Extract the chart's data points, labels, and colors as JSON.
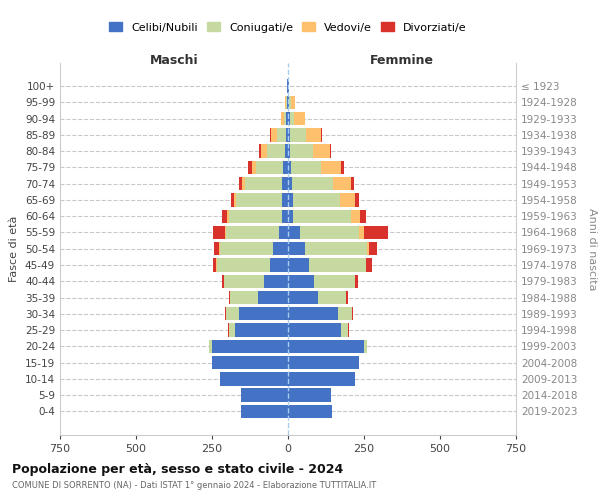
{
  "age_groups": [
    "0-4",
    "5-9",
    "10-14",
    "15-19",
    "20-24",
    "25-29",
    "30-34",
    "35-39",
    "40-44",
    "45-49",
    "50-54",
    "55-59",
    "60-64",
    "65-69",
    "70-74",
    "75-79",
    "80-84",
    "85-89",
    "90-94",
    "95-99",
    "100+"
  ],
  "birth_years": [
    "2019-2023",
    "2014-2018",
    "2009-2013",
    "2004-2008",
    "1999-2003",
    "1994-1998",
    "1989-1993",
    "1984-1988",
    "1979-1983",
    "1974-1978",
    "1969-1973",
    "1964-1968",
    "1959-1963",
    "1954-1958",
    "1949-1953",
    "1944-1948",
    "1939-1943",
    "1934-1938",
    "1929-1933",
    "1924-1928",
    "≤ 1923"
  ],
  "colors": {
    "celibi": "#4472c4",
    "coniugati": "#c5d9a0",
    "vedovi": "#ffc06e",
    "divorziati": "#d9312b"
  },
  "males": {
    "celibi": [
      155,
      155,
      225,
      250,
      250,
      175,
      160,
      100,
      80,
      60,
      50,
      30,
      20,
      20,
      20,
      15,
      10,
      5,
      5,
      4,
      2
    ],
    "coniugati": [
      0,
      0,
      0,
      0,
      10,
      20,
      45,
      90,
      130,
      175,
      175,
      175,
      175,
      150,
      120,
      90,
      60,
      30,
      8,
      2,
      0
    ],
    "vedovi": [
      0,
      0,
      0,
      0,
      0,
      0,
      0,
      0,
      0,
      1,
      2,
      3,
      5,
      8,
      10,
      15,
      20,
      20,
      10,
      5,
      0
    ],
    "divorziati": [
      0,
      0,
      0,
      0,
      0,
      2,
      2,
      5,
      8,
      10,
      18,
      40,
      18,
      10,
      10,
      10,
      5,
      5,
      0,
      0,
      0
    ]
  },
  "females": {
    "celibi": [
      145,
      140,
      220,
      235,
      250,
      175,
      165,
      100,
      85,
      70,
      55,
      40,
      18,
      15,
      12,
      10,
      8,
      5,
      5,
      4,
      2
    ],
    "coniugati": [
      0,
      0,
      0,
      0,
      10,
      22,
      45,
      90,
      135,
      185,
      205,
      195,
      190,
      155,
      135,
      100,
      75,
      55,
      15,
      5,
      0
    ],
    "vedovi": [
      0,
      0,
      0,
      0,
      0,
      0,
      0,
      0,
      1,
      3,
      8,
      15,
      30,
      50,
      60,
      65,
      55,
      50,
      35,
      15,
      2
    ],
    "divorziati": [
      0,
      0,
      0,
      0,
      0,
      3,
      5,
      8,
      10,
      18,
      25,
      80,
      18,
      15,
      10,
      10,
      5,
      3,
      2,
      0,
      0
    ]
  },
  "xlim": 750,
  "title": "Popolazione per età, sesso e stato civile - 2024",
  "subtitle": "COMUNE DI SORRENTO (NA) - Dati ISTAT 1° gennaio 2024 - Elaborazione TUTTITALIA.IT",
  "xlabel_left": "Maschi",
  "xlabel_right": "Femmine",
  "ylabel_left": "Fasce di età",
  "ylabel_right": "Anni di nascita",
  "legend_labels": [
    "Celibi/Nubili",
    "Coniugati/e",
    "Vedovi/e",
    "Divorziati/e"
  ],
  "bg_color": "#ffffff",
  "grid_color": "#cccccc"
}
